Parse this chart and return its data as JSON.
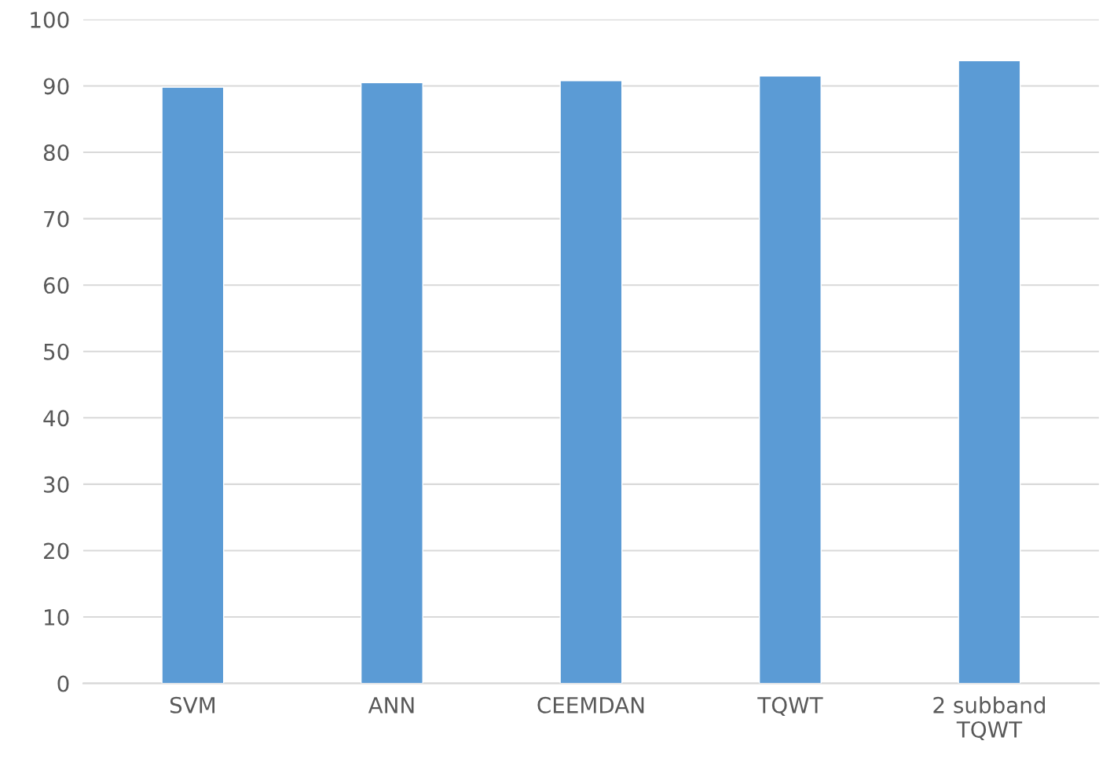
{
  "chart_data": {
    "type": "bar",
    "categories": [
      "SVM",
      "ANN",
      "CEEMDAN",
      "TQWT",
      "2 subband\nTQWT"
    ],
    "values": [
      89.8,
      90.5,
      90.8,
      91.5,
      93.8
    ],
    "color": "#5b9bd5",
    "ylim": [
      0,
      100
    ],
    "yticks": [
      0,
      10,
      20,
      30,
      40,
      50,
      60,
      70,
      80,
      90,
      100
    ],
    "grid": "y",
    "legend": false
  }
}
